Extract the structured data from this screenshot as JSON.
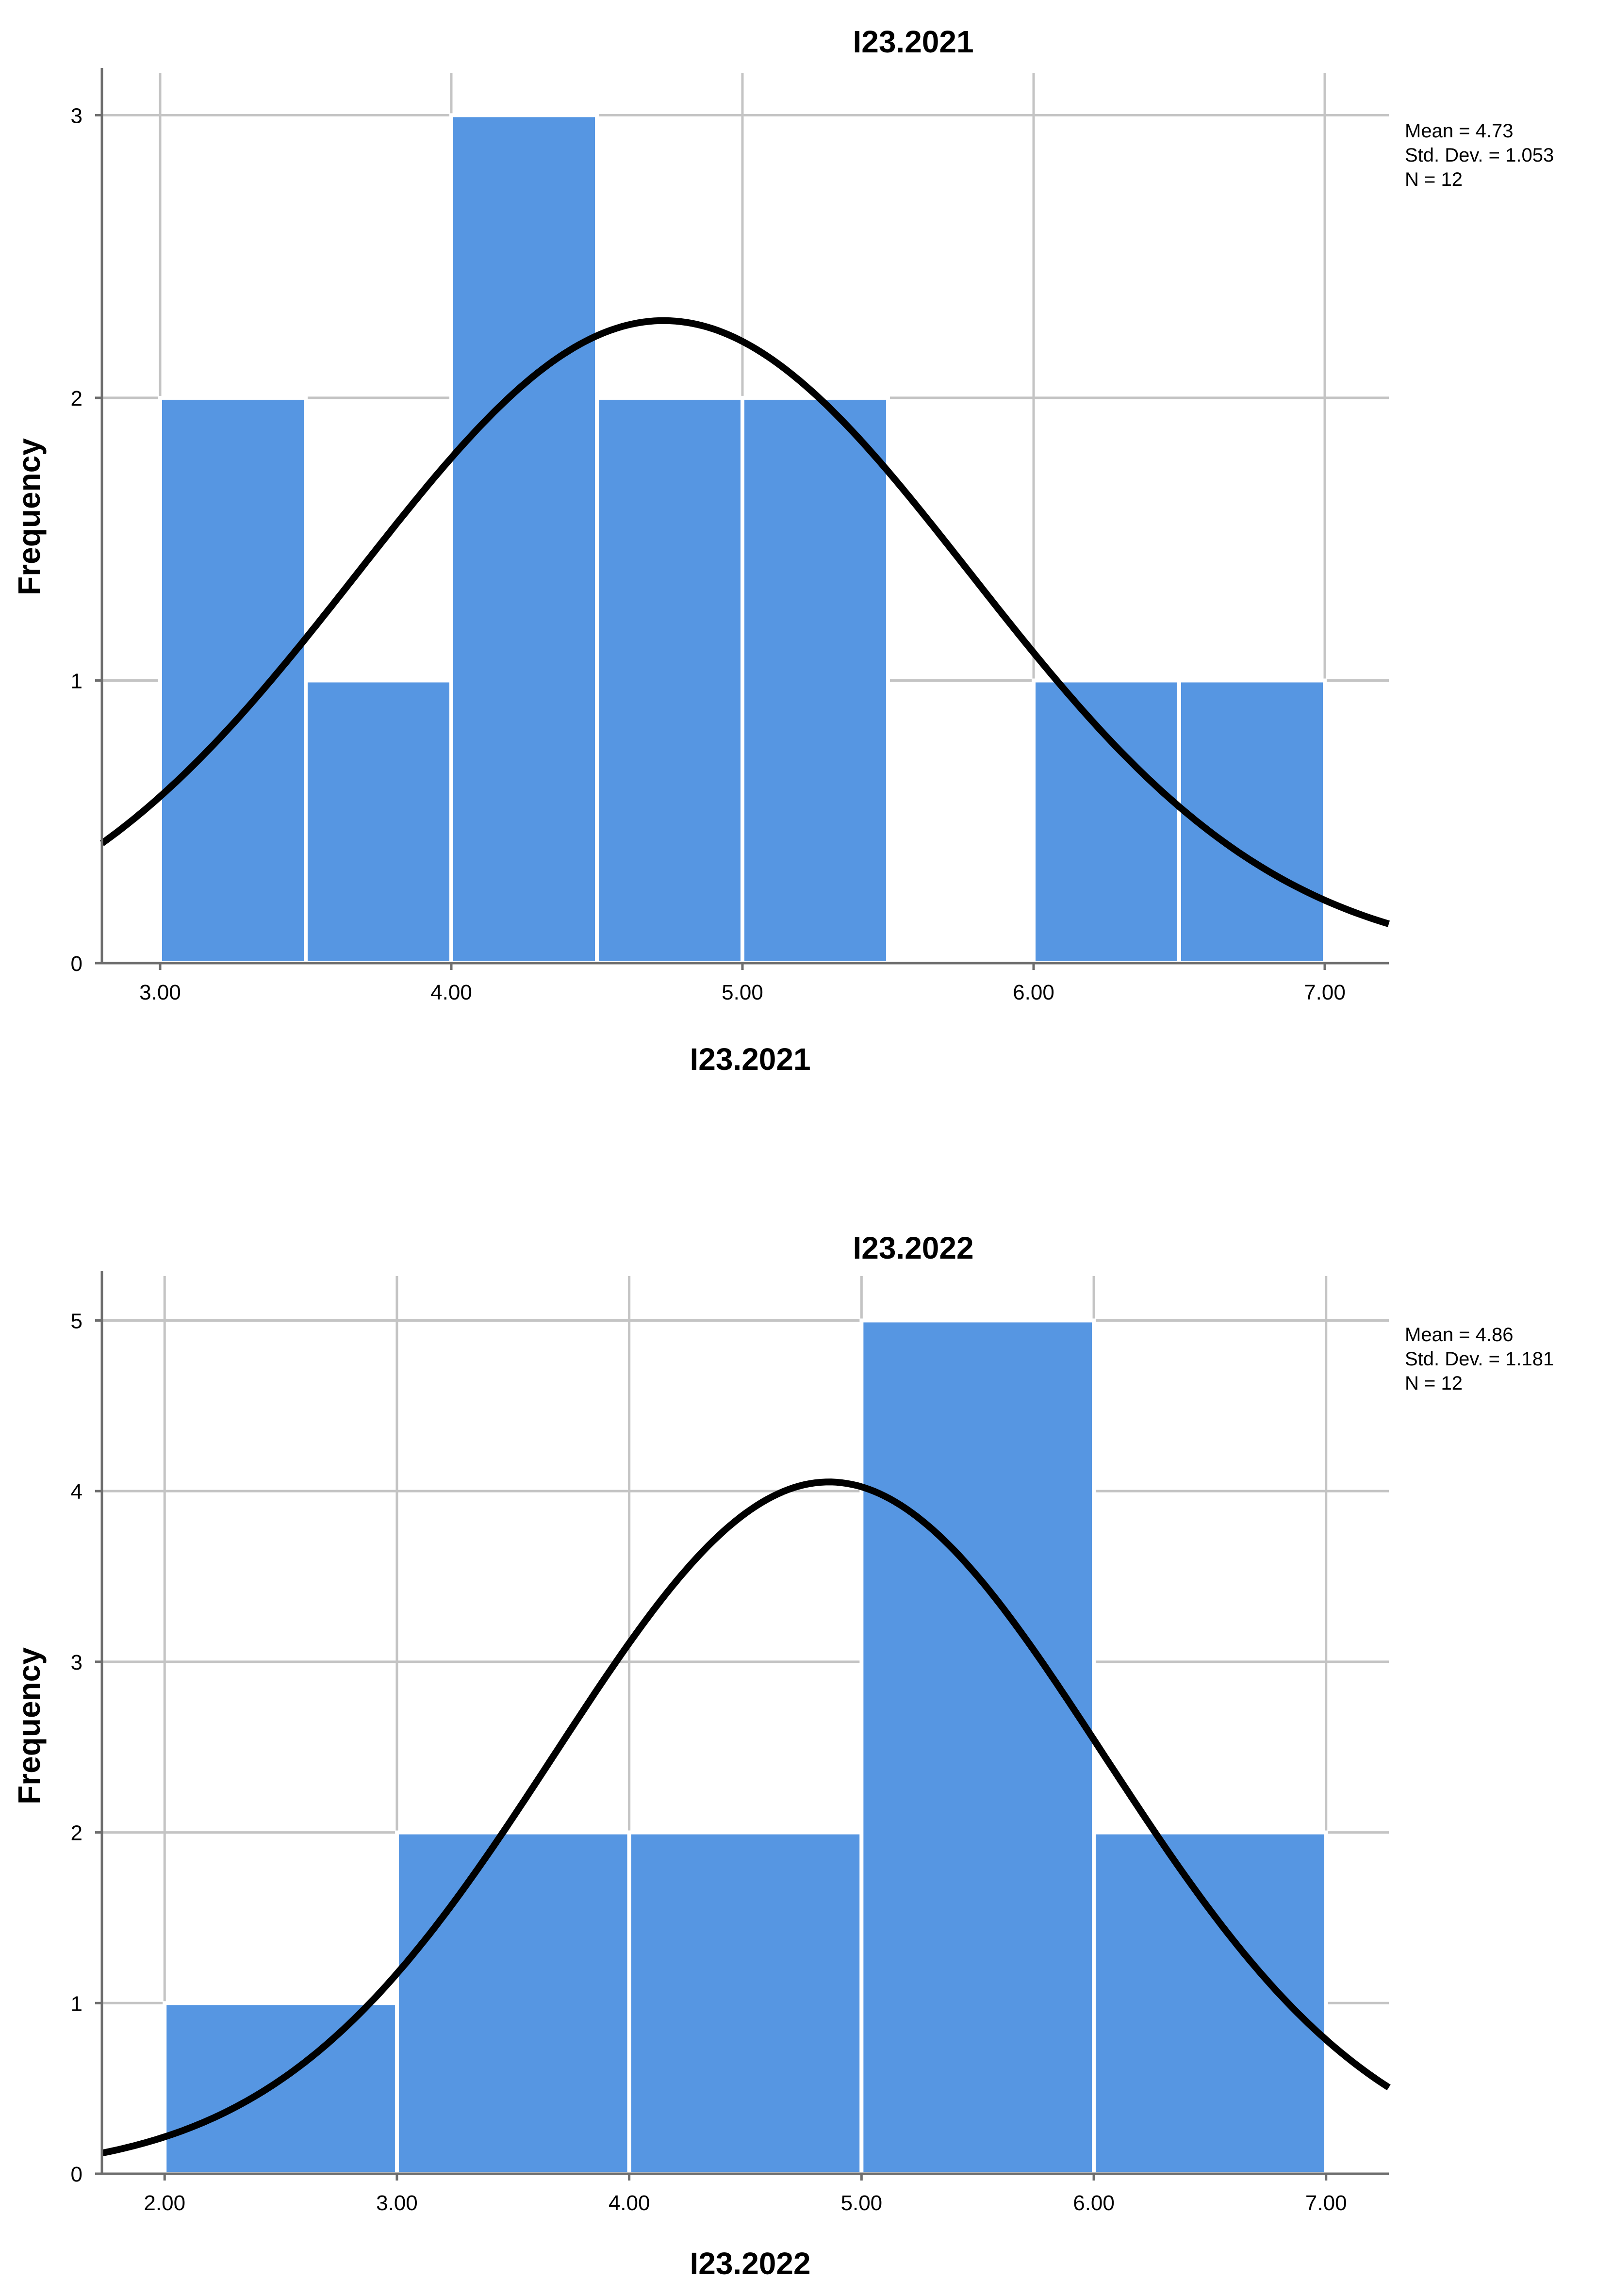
{
  "chart_data": [
    {
      "type": "bar",
      "subtype": "histogram",
      "title": "I23.2021",
      "xlabel": "I23.2021",
      "ylabel": "Frequency",
      "bin_edges": [
        3.0,
        3.5,
        4.0,
        4.5,
        5.0,
        5.5,
        6.0,
        6.5,
        7.0
      ],
      "values": [
        2,
        1,
        3,
        2,
        2,
        0,
        1,
        1
      ],
      "xlim": [
        2.8,
        7.22
      ],
      "ylim": [
        0,
        3.15
      ],
      "x_ticks": [
        3.0,
        4.0,
        5.0,
        6.0,
        7.0
      ],
      "x_tick_labels": [
        "3.00",
        "4.00",
        "5.00",
        "6.00",
        "7.00"
      ],
      "y_ticks": [
        0,
        1,
        2,
        3
      ],
      "y_tick_labels": [
        "0",
        "1",
        "2",
        "3"
      ],
      "normal_curve": {
        "mean": 4.73,
        "sd": 1.053,
        "n": 12,
        "bin_width": 0.5
      },
      "stats": [
        "Mean = 4.73",
        "Std. Dev. = 1.053",
        "N = 12"
      ],
      "grid": true,
      "colors": {
        "bar": "#5696e2",
        "curve": "#000000",
        "grid": "#c4c4c4"
      }
    },
    {
      "type": "bar",
      "subtype": "histogram",
      "title": "I23.2022",
      "xlabel": "I23.2022",
      "ylabel": "Frequency",
      "bin_edges": [
        2.0,
        3.0,
        4.0,
        5.0,
        6.0,
        7.0
      ],
      "values": [
        1,
        2,
        2,
        5,
        2
      ],
      "xlim": [
        1.73,
        7.27
      ],
      "ylim": [
        0,
        5.26
      ],
      "x_ticks": [
        2.0,
        3.0,
        4.0,
        5.0,
        6.0,
        7.0
      ],
      "x_tick_labels": [
        "2.00",
        "3.00",
        "4.00",
        "5.00",
        "6.00",
        "7.00"
      ],
      "y_ticks": [
        0,
        1,
        2,
        3,
        4,
        5
      ],
      "y_tick_labels": [
        "0",
        "1",
        "2",
        "3",
        "4",
        "5"
      ],
      "normal_curve": {
        "mean": 4.86,
        "sd": 1.181,
        "n": 12,
        "bin_width": 1.0
      },
      "stats": [
        "Mean = 4.86",
        "Std. Dev. = 1.181",
        "N = 12"
      ],
      "grid": true,
      "colors": {
        "bar": "#5696e2",
        "curve": "#000000",
        "grid": "#c4c4c4"
      }
    }
  ]
}
